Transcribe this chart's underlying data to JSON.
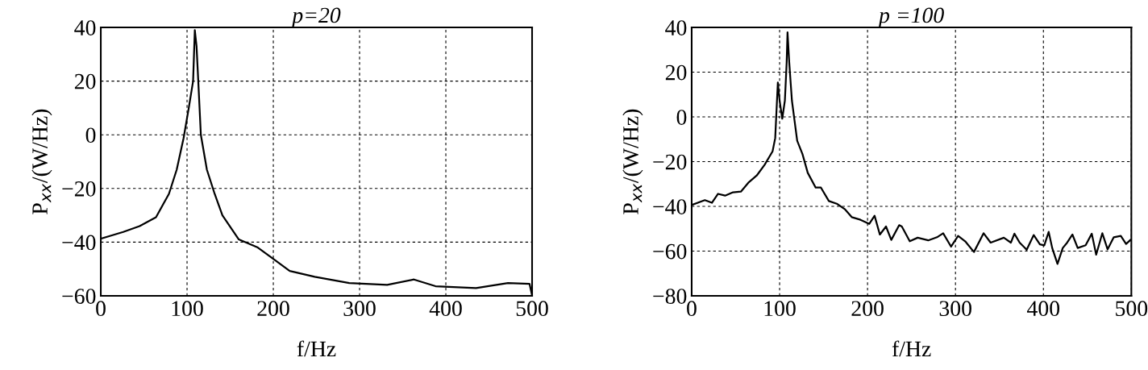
{
  "chart_data": [
    {
      "type": "line",
      "title": "p=20",
      "xlabel": "f/Hz",
      "ylabel": "P$_{xx}$/(W/Hz)",
      "xlim": [
        0,
        500
      ],
      "ylim": [
        -60,
        40
      ],
      "xticks": [
        0,
        100,
        200,
        300,
        400,
        500
      ],
      "yticks": [
        -60,
        -40,
        -20,
        0,
        20,
        40
      ],
      "grid": true,
      "series": [
        {
          "color": "#000000",
          "line_style": "solid",
          "x": [
            0,
            26,
            45,
            64,
            79,
            88,
            96,
            102,
            107,
            109,
            111,
            113,
            116,
            123,
            132,
            141,
            160,
            182,
            199,
            219,
            248,
            288,
            332,
            363,
            388,
            435,
            472,
            497,
            500
          ],
          "values": [
            -38.7,
            -36.2,
            -34,
            -30.7,
            -22,
            -13,
            -1.2,
            10,
            20,
            39,
            33,
            20,
            0,
            -13,
            -22,
            -30,
            -39,
            -42,
            -46,
            -50.7,
            -52.9,
            -55.2,
            -55.9,
            -53.9,
            -56.4,
            -57.1,
            -55.2,
            -55.5,
            -59.9
          ]
        }
      ]
    },
    {
      "type": "line",
      "title": "p =100",
      "xlabel": "f/Hz",
      "ylabel": "P$_{xx}$/(W/Hz)",
      "xlim": [
        0,
        500
      ],
      "ylim": [
        -80,
        40
      ],
      "xticks": [
        0,
        100,
        200,
        300,
        400,
        500
      ],
      "yticks": [
        -80,
        -60,
        -40,
        -20,
        0,
        20,
        40
      ],
      "grid": true,
      "series": [
        {
          "color": "#000000",
          "line_style": "solid",
          "x": [
            0,
            15,
            23,
            30,
            38,
            47,
            56,
            65,
            74,
            83,
            92,
            95,
            98,
            100,
            103,
            106,
            108,
            109,
            111,
            114,
            120,
            126,
            132,
            141,
            147,
            156,
            165,
            174,
            182,
            192,
            202,
            208,
            214,
            221,
            227,
            236,
            239,
            248,
            257,
            269,
            279,
            286,
            295,
            303,
            311,
            321,
            332,
            340,
            355,
            363,
            367,
            373,
            381,
            389,
            396,
            401,
            406,
            410,
            416,
            422,
            427,
            433,
            439,
            448,
            455,
            460,
            467,
            473,
            480,
            488,
            494,
            499
          ],
          "values": [
            -39.4,
            -37.2,
            -38.4,
            -34.4,
            -35.2,
            -33.7,
            -33.4,
            -29.2,
            -26.2,
            -21.4,
            -15.4,
            -9.5,
            15.4,
            7.3,
            -0.8,
            7.3,
            24,
            37.8,
            24,
            7.3,
            -10.7,
            -16.6,
            -25,
            -31.6,
            -31.6,
            -37.6,
            -38.8,
            -41.2,
            -44.8,
            -46,
            -47.8,
            -44.2,
            -52.6,
            -49,
            -55,
            -48.4,
            -49,
            -55.6,
            -54,
            -55.2,
            -53.8,
            -52,
            -58,
            -53.2,
            -55.6,
            -60.4,
            -52,
            -56.2,
            -54,
            -56.2,
            -52.2,
            -56.2,
            -59.4,
            -52.8,
            -57,
            -57.4,
            -51.4,
            -58.6,
            -65.7,
            -58.6,
            -56.2,
            -52.6,
            -58.6,
            -57.4,
            -52.2,
            -61.6,
            -52,
            -59.2,
            -53.8,
            -53.2,
            -56.8,
            -55
          ]
        }
      ]
    }
  ]
}
